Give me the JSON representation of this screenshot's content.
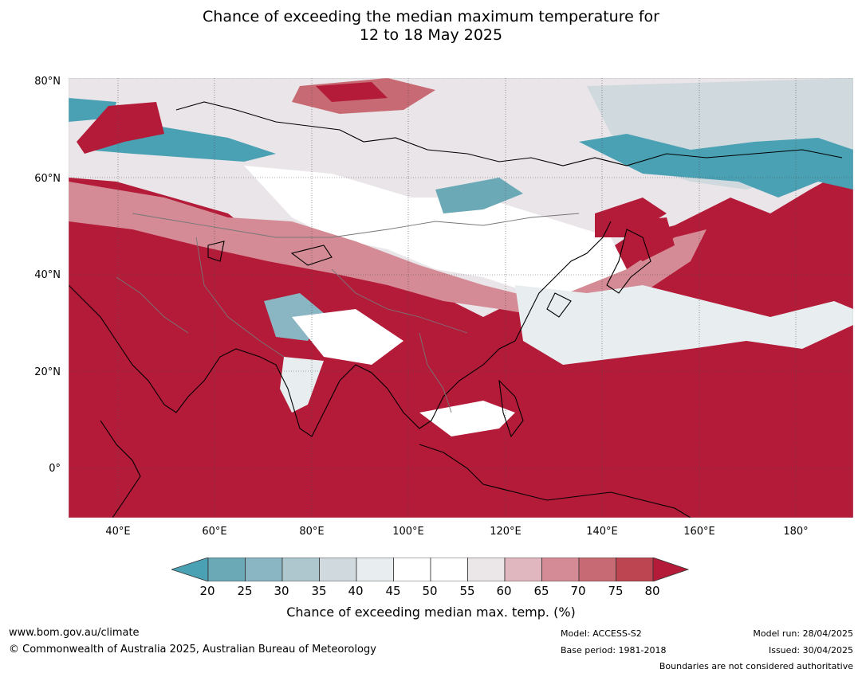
{
  "title": {
    "line1": "Chance of exceeding the median maximum temperature for",
    "line2": "12 to 18 May 2025"
  },
  "map": {
    "lat_labels": [
      "80°N",
      "60°N",
      "40°N",
      "20°N",
      "0°"
    ],
    "lon_labels": [
      "40°E",
      "60°E",
      "80°E",
      "100°E",
      "120°E",
      "140°E",
      "160°E",
      "180°"
    ]
  },
  "colorbar": {
    "ticks": [
      "20",
      "25",
      "30",
      "35",
      "40",
      "45",
      "50",
      "55",
      "60",
      "65",
      "70",
      "75",
      "80"
    ],
    "colors": [
      "#4aa1b3",
      "#6ca9b7",
      "#8ab6c3",
      "#aec6cd",
      "#d0d9dd",
      "#e8eef0",
      "#ffffff",
      "#ffffff",
      "#ebe6e8",
      "#e0b7bf",
      "#d48b95",
      "#c86a73",
      "#bd4552",
      "#b31b39"
    ],
    "label": "Chance of exceeding median max. temp. (%)"
  },
  "footer": {
    "url": "www.bom.gov.au/climate",
    "copyright": "© Commonwealth of Australia 2025, Australian Bureau of Meteorology",
    "model": "Model: ACCESS-S2",
    "base_period": "Base period: 1981-2018",
    "model_run": "Model run: 28/04/2025",
    "issued": "Issued: 30/04/2025",
    "disclaimer": "Boundaries are not considered authoritative"
  }
}
